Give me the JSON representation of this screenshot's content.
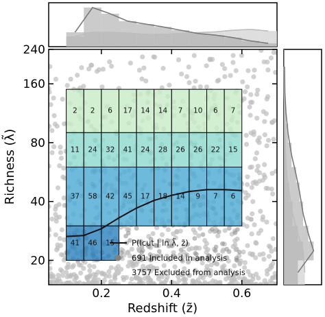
{
  "chart_data": {
    "type": "heatmap",
    "xlabel": "Redshift (z̃)",
    "ylabel": "Richness (λ̃)",
    "xlim": [
      0.05,
      0.7
    ],
    "ylim": [
      15,
      240
    ],
    "y_scale": "log",
    "x_ticks": [
      0.2,
      0.4,
      0.6
    ],
    "x_tick_labels": [
      "0.2",
      "0.4",
      "0.6"
    ],
    "y_ticks": [
      20,
      40,
      80,
      160,
      240
    ],
    "y_tick_labels": [
      "20",
      "40",
      "80",
      "160",
      "240"
    ],
    "z_edges": [
      0.1,
      0.15,
      0.2,
      0.25,
      0.3,
      0.35,
      0.4,
      0.45,
      0.5,
      0.55,
      0.6
    ],
    "lambda_edges": [
      20,
      30,
      60,
      90,
      150
    ],
    "bins": [
      {
        "row": 3,
        "counts": [
          2,
          2,
          6,
          17,
          14,
          14,
          7,
          10,
          6,
          7
        ],
        "color": "#c8ebc8"
      },
      {
        "row": 2,
        "counts": [
          11,
          24,
          32,
          41,
          24,
          28,
          26,
          26,
          22,
          15
        ],
        "color": "#8fdad0"
      },
      {
        "row": 1,
        "counts": [
          37,
          58,
          42,
          45,
          17,
          18,
          14,
          9,
          7,
          6
        ],
        "color": "#4dabd6"
      },
      {
        "row": 0,
        "counts": [
          41,
          46,
          15
        ],
        "color": "#2d84c0"
      }
    ],
    "curve": {
      "label": "P(Icut | ln λ̃, z̃)",
      "x": [
        0.1,
        0.15,
        0.2,
        0.25,
        0.3,
        0.35,
        0.4,
        0.45,
        0.5,
        0.55,
        0.6
      ],
      "y": [
        26.5,
        26.8,
        29,
        33,
        37,
        40.5,
        43,
        45,
        46,
        46,
        45.5
      ]
    },
    "legend": {
      "placement": "lower-right",
      "entries": [
        {
          "label": "P(Icut | ln λ̃, z̃)",
          "marker": "line",
          "color": "#111111"
        },
        {
          "label": "691 Included in analysis",
          "marker": "circle",
          "color": "#808080"
        },
        {
          "label": "3757 Excluded from analysis",
          "marker": "circle",
          "color": "#c8c8c8"
        }
      ]
    },
    "scatter_color_excluded": "#bdbdbd",
    "scatter_color_included": "#8c8c8c",
    "top_marginal": {
      "type": "histogram+kde",
      "bins": [
        0.1,
        0.15,
        0.2,
        0.25,
        0.3,
        0.35,
        0.4,
        0.45,
        0.5,
        0.55,
        0.6,
        0.65,
        0.7
      ],
      "included": [
        0.35,
        0.95,
        0.8,
        0.62,
        0.55,
        0.48,
        0.4,
        0.32,
        0.28,
        0.22,
        0.14,
        0.08
      ],
      "excluded": [
        0.25,
        0.35,
        0.35,
        0.33,
        0.3,
        0.3,
        0.32,
        0.34,
        0.36,
        0.4,
        0.42,
        0.38
      ]
    },
    "right_marginal": {
      "type": "histogram+kde",
      "bins": [
        15,
        20,
        25,
        30,
        40,
        50,
        60,
        80,
        100,
        130,
        160,
        240
      ],
      "included": [
        0.4,
        0.85,
        0.7,
        0.55,
        0.45,
        0.35,
        0.22,
        0.12,
        0.06,
        0.03,
        0.02
      ],
      "excluded": [
        0.6,
        0.55,
        0.4,
        0.25,
        0.15,
        0.08,
        0.05,
        0.03,
        0.02,
        0.01,
        0.005
      ]
    }
  }
}
